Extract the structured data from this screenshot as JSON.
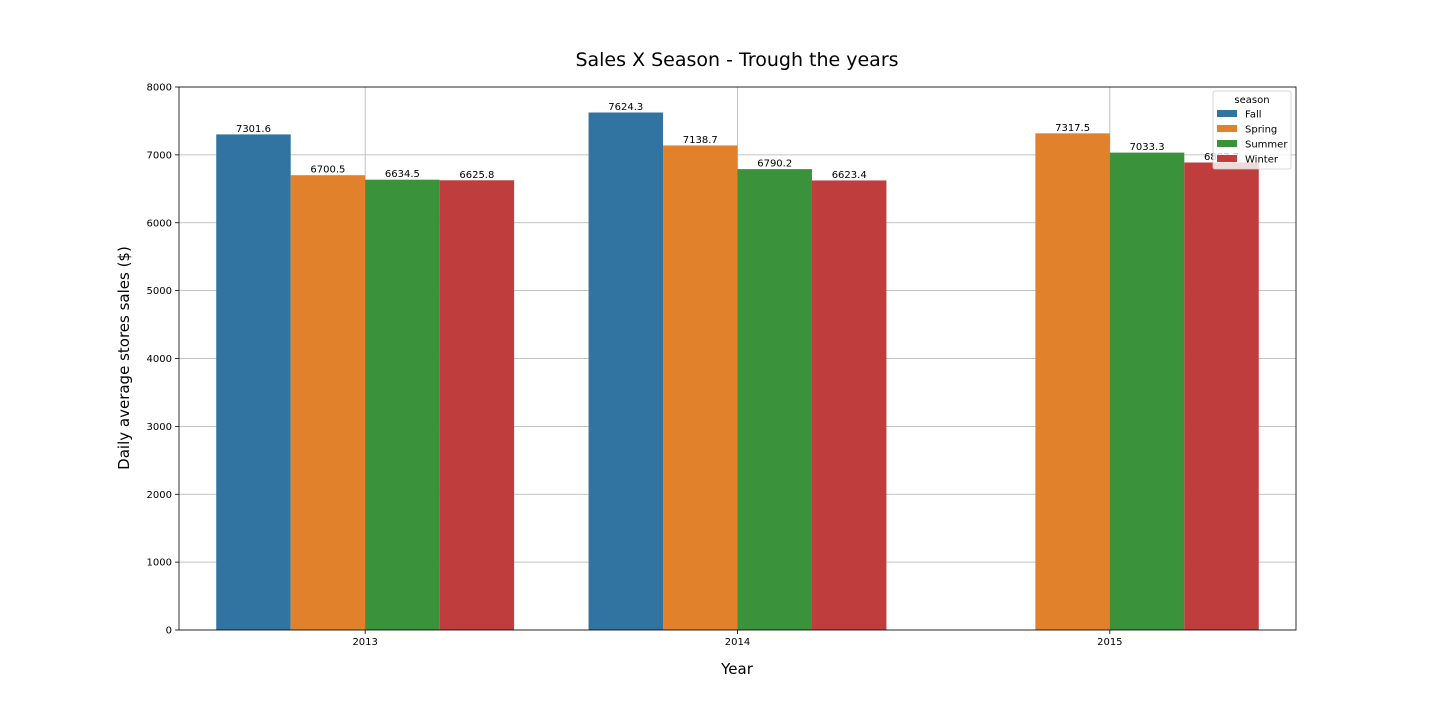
{
  "chart_data": {
    "type": "bar",
    "title": "Sales X Season - Trough the years",
    "xlabel": "Year",
    "ylabel": "Daily average stores sales ($)",
    "categories": [
      "2013",
      "2014",
      "2015"
    ],
    "ylim": [
      0,
      8000
    ],
    "yticks": [
      0,
      1000,
      2000,
      3000,
      4000,
      5000,
      6000,
      7000,
      8000
    ],
    "grid": true,
    "legend": {
      "title": "season",
      "position": "top-right"
    },
    "series": [
      {
        "name": "Fall",
        "color": "#3274a1",
        "values": [
          7301.6,
          7624.3,
          null
        ],
        "labels": [
          "7301.6",
          "7624.3",
          ""
        ]
      },
      {
        "name": "Spring",
        "color": "#e1812c",
        "values": [
          6700.5,
          7138.7,
          7317.5
        ],
        "labels": [
          "6700.5",
          "7138.7",
          "7317.5"
        ]
      },
      {
        "name": "Summer",
        "color": "#3a923a",
        "values": [
          6634.5,
          6790.2,
          7033.3
        ],
        "labels": [
          "6634.5",
          "6790.2",
          "7033.3"
        ]
      },
      {
        "name": "Winter",
        "color": "#c03d3e",
        "values": [
          6625.8,
          6623.4,
          6887.7
        ],
        "labels": [
          "6625.8",
          "6623.4",
          "6887.7"
        ]
      }
    ]
  }
}
